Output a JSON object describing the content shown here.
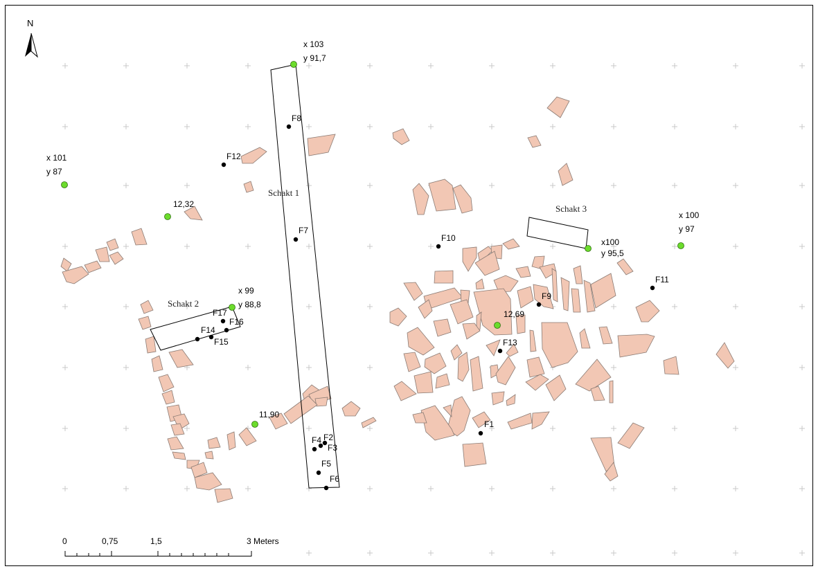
{
  "north_arrow": {
    "label": "N"
  },
  "trenches": [
    {
      "id": "schakt-1",
      "label": "Schakt 1"
    },
    {
      "id": "schakt-2",
      "label": "Schakt 2"
    },
    {
      "id": "schakt-3",
      "label": "Schakt 3"
    }
  ],
  "control_points": [
    {
      "id": "cp-x101",
      "lines": [
        "x 101",
        "y 87"
      ]
    },
    {
      "id": "cp-x103",
      "lines": [
        "x 103",
        "y 91,7"
      ]
    },
    {
      "id": "cp-x99",
      "lines": [
        "x 99",
        "y 88,8"
      ]
    },
    {
      "id": "cp-x100-95",
      "lines": [
        "x100",
        "y 95,5"
      ]
    },
    {
      "id": "cp-x100-97",
      "lines": [
        "x 100",
        "y 97"
      ]
    },
    {
      "id": "cp-1232",
      "lines": [
        "12,32"
      ]
    },
    {
      "id": "cp-1190",
      "lines": [
        "11,90"
      ]
    },
    {
      "id": "cp-1269",
      "lines": [
        "12,69"
      ]
    }
  ],
  "features": [
    "F1",
    "F2",
    "F3",
    "F4",
    "F5",
    "F6",
    "F7",
    "F8",
    "F9",
    "F10",
    "F11",
    "F12",
    "F13",
    "F14",
    "F15",
    "F16",
    "F17"
  ],
  "scale_bar": {
    "ticks": [
      "0",
      "0,75",
      "1,5",
      "3 Meters"
    ]
  },
  "colors": {
    "stone_fill": "#f2c7b4",
    "stone_stroke": "#8a7b74",
    "control_point": "#6cdc2c",
    "grid_cross": "#c8c8c8"
  }
}
